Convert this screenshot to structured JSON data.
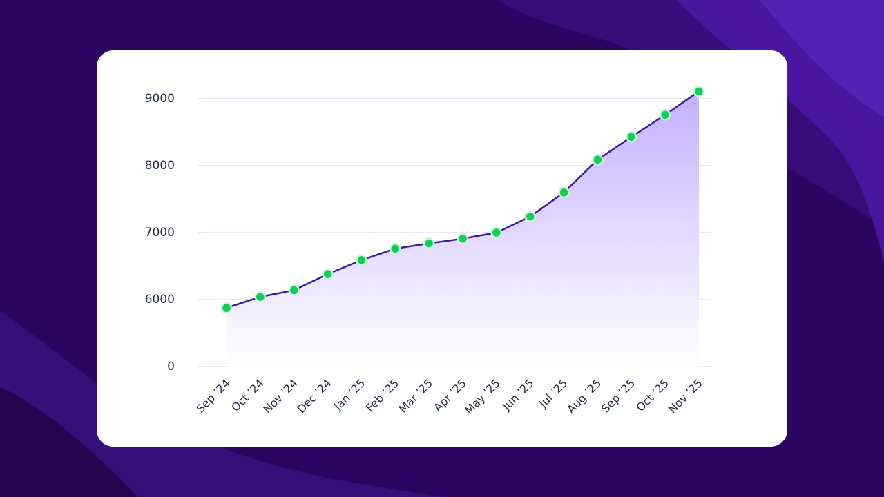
{
  "chart_data": {
    "type": "area",
    "categories": [
      "Sep ’24",
      "Oct ’24",
      "Nov ’24",
      "Dec ’24",
      "Jan ’25",
      "Feb ’25",
      "Mar ’25",
      "Apr ’25",
      "May ’25",
      "Jun ’25",
      "Jul ’25",
      "Aug ’25",
      "Sep ’25",
      "Oct ’25",
      "Nov ’25"
    ],
    "values": [
      5250,
      6040,
      6140,
      6380,
      6590,
      6760,
      6840,
      6910,
      7000,
      7240,
      7600,
      8090,
      8430,
      8760,
      9110
    ],
    "color": "#3a1a9e",
    "marker_color": "#14cc5c",
    "ylim": [
      0,
      9200
    ],
    "yticks": [
      0,
      6000,
      7000,
      8000,
      9000
    ],
    "grid": true
  }
}
